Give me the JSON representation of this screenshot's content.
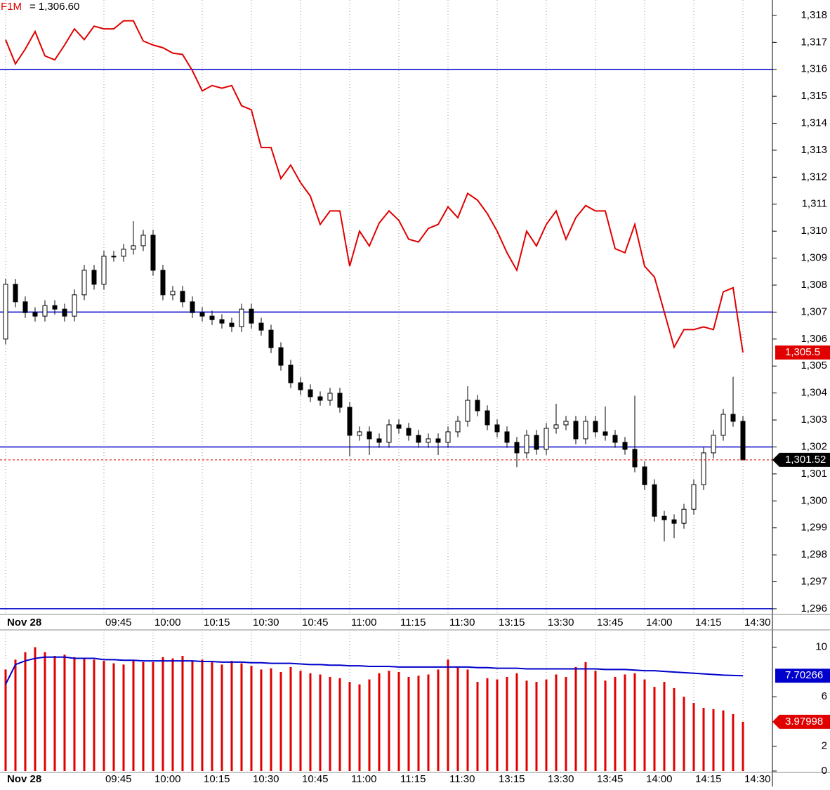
{
  "chart_data": [
    {
      "type": "candlestick",
      "legend_value": "= 1,306.60",
      "xlim": [
        -0.57,
        78
      ],
      "xticks": [
        {
          "value": 0,
          "label": "Nov 28"
        },
        {
          "value": 10,
          "label": "09:45"
        },
        {
          "value": 15,
          "label": "10:00"
        },
        {
          "value": 20,
          "label": "10:15"
        },
        {
          "value": 25,
          "label": "10:30"
        },
        {
          "value": 30,
          "label": "10:45"
        },
        {
          "value": 35,
          "label": "11:00"
        },
        {
          "value": 40,
          "label": "11:15"
        },
        {
          "value": 45,
          "label": "11:30"
        },
        {
          "value": 50,
          "label": "13:15"
        },
        {
          "value": 55,
          "label": "13:30"
        },
        {
          "value": 60,
          "label": "13:45"
        },
        {
          "value": 65,
          "label": "14:00"
        },
        {
          "value": 70,
          "label": "14:15"
        },
        {
          "value": 75,
          "label": "14:30"
        }
      ],
      "ylim": [
        1295.79,
        1318.57
      ],
      "yticks": [
        {
          "value": 1296,
          "label": "1,296"
        },
        {
          "value": 1297,
          "label": "1,297"
        },
        {
          "value": 1298,
          "label": "1,298"
        },
        {
          "value": 1299,
          "label": "1,299"
        },
        {
          "value": 1300,
          "label": "1,300"
        },
        {
          "value": 1301,
          "label": "1,301"
        },
        {
          "value": 1302,
          "label": "1,302"
        },
        {
          "value": 1303,
          "label": "1,303"
        },
        {
          "value": 1304,
          "label": "1,304"
        },
        {
          "value": 1305,
          "label": "1,305"
        },
        {
          "value": 1306,
          "label": "1,306"
        },
        {
          "value": 1307,
          "label": "1,307"
        },
        {
          "value": 1308,
          "label": "1,308"
        },
        {
          "value": 1309,
          "label": "1,309"
        },
        {
          "value": 1310,
          "label": "1,310"
        },
        {
          "value": 1311,
          "label": "1,311"
        },
        {
          "value": 1312,
          "label": "1,312"
        },
        {
          "value": 1313,
          "label": "1,313"
        },
        {
          "value": 1314,
          "label": "1,314"
        },
        {
          "value": 1315,
          "label": "1,315"
        },
        {
          "value": 1316,
          "label": "1,316"
        },
        {
          "value": 1317,
          "label": "1,317"
        },
        {
          "value": 1318,
          "label": "1,318"
        }
      ],
      "hlines": [
        1316,
        1307,
        1302,
        1296
      ],
      "hline_color": "#0000cc",
      "candles": {
        "open": [
          1306.0,
          1308.03,
          1307.38,
          1306.98,
          1306.85,
          1307.24,
          1307.11,
          1306.85,
          1307.64,
          1308.55,
          1308.03,
          1309.07,
          1309.07,
          1309.33,
          1309.46,
          1309.85,
          1308.55,
          1307.64,
          1307.77,
          1307.38,
          1306.98,
          1306.85,
          1306.72,
          1306.59,
          1306.46,
          1307.11,
          1306.59,
          1306.33,
          1305.68,
          1305.03,
          1304.38,
          1304.12,
          1303.86,
          1303.73,
          1303.99,
          1303.47,
          1302.43,
          1302.56,
          1302.3,
          1302.17,
          1302.82,
          1302.69,
          1302.43,
          1302.17,
          1302.3,
          1302.17,
          1302.56,
          1302.95,
          1303.73,
          1303.34,
          1302.82,
          1302.56,
          1302.17,
          1301.78,
          1302.43,
          1301.91,
          1302.69,
          1302.82,
          1302.95,
          1302.3,
          1302.95,
          1302.56,
          1302.43,
          1302.17,
          1301.91,
          1301.26,
          1300.6,
          1299.43,
          1299.3,
          1299.17,
          1299.69,
          1300.6,
          1301.78,
          1302.43,
          1303.21,
          1302.95
        ],
        "high": [
          1308.23,
          1308.23,
          1307.58,
          1307.18,
          1307.44,
          1307.44,
          1307.31,
          1307.84,
          1308.75,
          1308.75,
          1309.27,
          1309.27,
          1309.53,
          1310.37,
          1310.05,
          1310.05,
          1308.75,
          1307.97,
          1307.97,
          1307.58,
          1307.18,
          1307.05,
          1306.92,
          1306.79,
          1307.31,
          1307.31,
          1306.79,
          1306.53,
          1305.88,
          1305.23,
          1304.58,
          1304.32,
          1304.06,
          1304.19,
          1304.19,
          1303.67,
          1302.76,
          1302.76,
          1302.5,
          1303.02,
          1303.02,
          1302.89,
          1302.63,
          1302.5,
          1302.5,
          1302.76,
          1303.15,
          1304.25,
          1303.93,
          1303.54,
          1303.02,
          1302.76,
          1302.37,
          1302.63,
          1302.63,
          1302.89,
          1303.6,
          1303.15,
          1303.15,
          1303.15,
          1303.15,
          1303.5,
          1302.63,
          1302.37,
          1303.9,
          1301.46,
          1300.8,
          1299.63,
          1299.5,
          1299.89,
          1300.8,
          1301.98,
          1302.63,
          1303.41,
          1304.6,
          1303.15
        ],
        "low": [
          1305.8,
          1307.18,
          1306.78,
          1306.65,
          1306.65,
          1306.91,
          1306.65,
          1306.65,
          1307.44,
          1307.83,
          1307.83,
          1308.87,
          1308.87,
          1309.13,
          1309.26,
          1308.35,
          1307.44,
          1307.44,
          1307.18,
          1306.78,
          1306.65,
          1306.52,
          1306.39,
          1306.26,
          1306.26,
          1306.39,
          1306.13,
          1305.48,
          1304.83,
          1304.18,
          1303.92,
          1303.66,
          1303.53,
          1303.53,
          1303.27,
          1301.65,
          1302.23,
          1301.7,
          1301.97,
          1301.97,
          1302.49,
          1302.23,
          1301.97,
          1301.97,
          1301.7,
          1301.97,
          1302.36,
          1302.75,
          1303.14,
          1302.62,
          1302.36,
          1301.97,
          1301.25,
          1301.58,
          1301.71,
          1301.71,
          1302.49,
          1302.62,
          1302.1,
          1302.1,
          1302.36,
          1302.23,
          1301.97,
          1301.71,
          1301.06,
          1300.4,
          1299.23,
          1298.5,
          1298.62,
          1298.97,
          1299.49,
          1300.4,
          1301.58,
          1302.23,
          1302.75,
          1301.52
        ],
        "close": [
          1308.03,
          1307.38,
          1306.98,
          1306.85,
          1307.24,
          1307.11,
          1306.85,
          1307.64,
          1308.55,
          1308.03,
          1309.07,
          1309.07,
          1309.33,
          1309.46,
          1309.85,
          1308.55,
          1307.64,
          1307.77,
          1307.38,
          1306.98,
          1306.85,
          1306.72,
          1306.59,
          1306.46,
          1307.11,
          1306.59,
          1306.33,
          1305.68,
          1305.03,
          1304.38,
          1304.12,
          1303.86,
          1303.73,
          1303.99,
          1303.47,
          1302.43,
          1302.56,
          1302.3,
          1302.17,
          1302.82,
          1302.69,
          1302.43,
          1302.17,
          1302.3,
          1302.17,
          1302.56,
          1302.95,
          1303.73,
          1303.34,
          1302.82,
          1302.56,
          1302.17,
          1301.78,
          1302.43,
          1301.91,
          1302.69,
          1302.82,
          1302.95,
          1302.3,
          1302.95,
          1302.56,
          1302.43,
          1302.17,
          1301.91,
          1301.26,
          1300.6,
          1299.43,
          1299.3,
          1299.17,
          1299.69,
          1300.6,
          1301.78,
          1302.43,
          1303.21,
          1302.95,
          1301.52
        ]
      },
      "series": [
        {
          "name": "F1M",
          "color": "#e00000",
          "values": [
            1317.1,
            1316.2,
            1316.75,
            1317.4,
            1316.5,
            1316.35,
            1316.9,
            1317.5,
            1317.1,
            1317.6,
            1317.5,
            1317.5,
            1317.8,
            1317.8,
            1317.05,
            1316.9,
            1316.8,
            1316.6,
            1316.55,
            1315.95,
            1315.2,
            1315.4,
            1315.3,
            1315.4,
            1314.65,
            1314.5,
            1313.1,
            1313.1,
            1311.95,
            1312.45,
            1311.8,
            1311.3,
            1310.25,
            1310.75,
            1310.75,
            1308.7,
            1310,
            1309.45,
            1310.3,
            1310.75,
            1310.4,
            1309.7,
            1309.6,
            1310.1,
            1310.25,
            1310.9,
            1310.5,
            1311.4,
            1311.15,
            1310.65,
            1310,
            1309.2,
            1308.55,
            1310,
            1309.45,
            1310.25,
            1310.75,
            1309.7,
            1310.5,
            1310.95,
            1310.75,
            1310.75,
            1309.35,
            1309.2,
            1310.25,
            1308.7,
            1308.3,
            1307,
            1305.7,
            1306.35,
            1306.35,
            1306.45,
            1306.35,
            1307.75,
            1307.9,
            1305.5
          ]
        }
      ],
      "markers": [
        {
          "value": 1305.5,
          "label": "1,305.5",
          "color": "#e00000"
        },
        {
          "value": 1301.52,
          "label": "1,301.52",
          "color": "#000000",
          "level_line_color": "#e00000"
        }
      ]
    },
    {
      "type": "bar",
      "xlim": [
        -0.57,
        78
      ],
      "ylim": [
        0,
        11.4
      ],
      "yticks": [
        0,
        2,
        6,
        10
      ],
      "series": [
        {
          "color": "#e00000",
          "values": [
            8.2,
            9.0,
            9.6,
            10.0,
            9.6,
            9.3,
            9.4,
            9.2,
            9.1,
            9.0,
            8.9,
            8.7,
            8.6,
            8.9,
            8.8,
            8.8,
            9.2,
            9.1,
            9.3,
            8.9,
            9.0,
            8.8,
            8.6,
            8.9,
            8.7,
            8.5,
            8.2,
            8.3,
            8.0,
            8.4,
            8.1,
            7.9,
            7.8,
            7.6,
            7.5,
            7.2,
            7.0,
            7.4,
            7.9,
            8.1,
            8.0,
            7.6,
            7.7,
            7.8,
            8.2,
            9.0,
            8.4,
            8.2,
            7.2,
            7.5,
            7.4,
            7.6,
            7.9,
            7.3,
            7.2,
            7.4,
            7.8,
            7.6,
            8.4,
            8.8,
            8.1,
            7.3,
            7.6,
            7.8,
            7.9,
            7.4,
            6.8,
            7.2,
            6.7,
            6.0,
            5.5,
            5.1,
            5.0,
            4.9,
            4.6,
            3.97998
          ]
        },
        {
          "type": "line",
          "color": "#0000cc",
          "values": [
            7.0,
            8.6,
            8.9,
            9.1,
            9.2,
            9.2,
            9.2,
            9.1,
            9.1,
            9.1,
            9.0,
            9.0,
            8.95,
            8.95,
            8.9,
            8.9,
            8.9,
            8.9,
            8.9,
            8.9,
            8.85,
            8.85,
            8.8,
            8.8,
            8.8,
            8.75,
            8.75,
            8.7,
            8.7,
            8.7,
            8.65,
            8.6,
            8.6,
            8.55,
            8.55,
            8.5,
            8.5,
            8.45,
            8.45,
            8.45,
            8.4,
            8.4,
            8.4,
            8.4,
            8.4,
            8.4,
            8.4,
            8.4,
            8.35,
            8.35,
            8.3,
            8.3,
            8.3,
            8.25,
            8.25,
            8.25,
            8.25,
            8.25,
            8.25,
            8.25,
            8.25,
            8.2,
            8.2,
            8.2,
            8.15,
            8.1,
            8.1,
            8.05,
            8.0,
            7.95,
            7.9,
            7.85,
            7.8,
            7.75,
            7.72,
            7.70266
          ]
        }
      ]
    }
  ]
}
